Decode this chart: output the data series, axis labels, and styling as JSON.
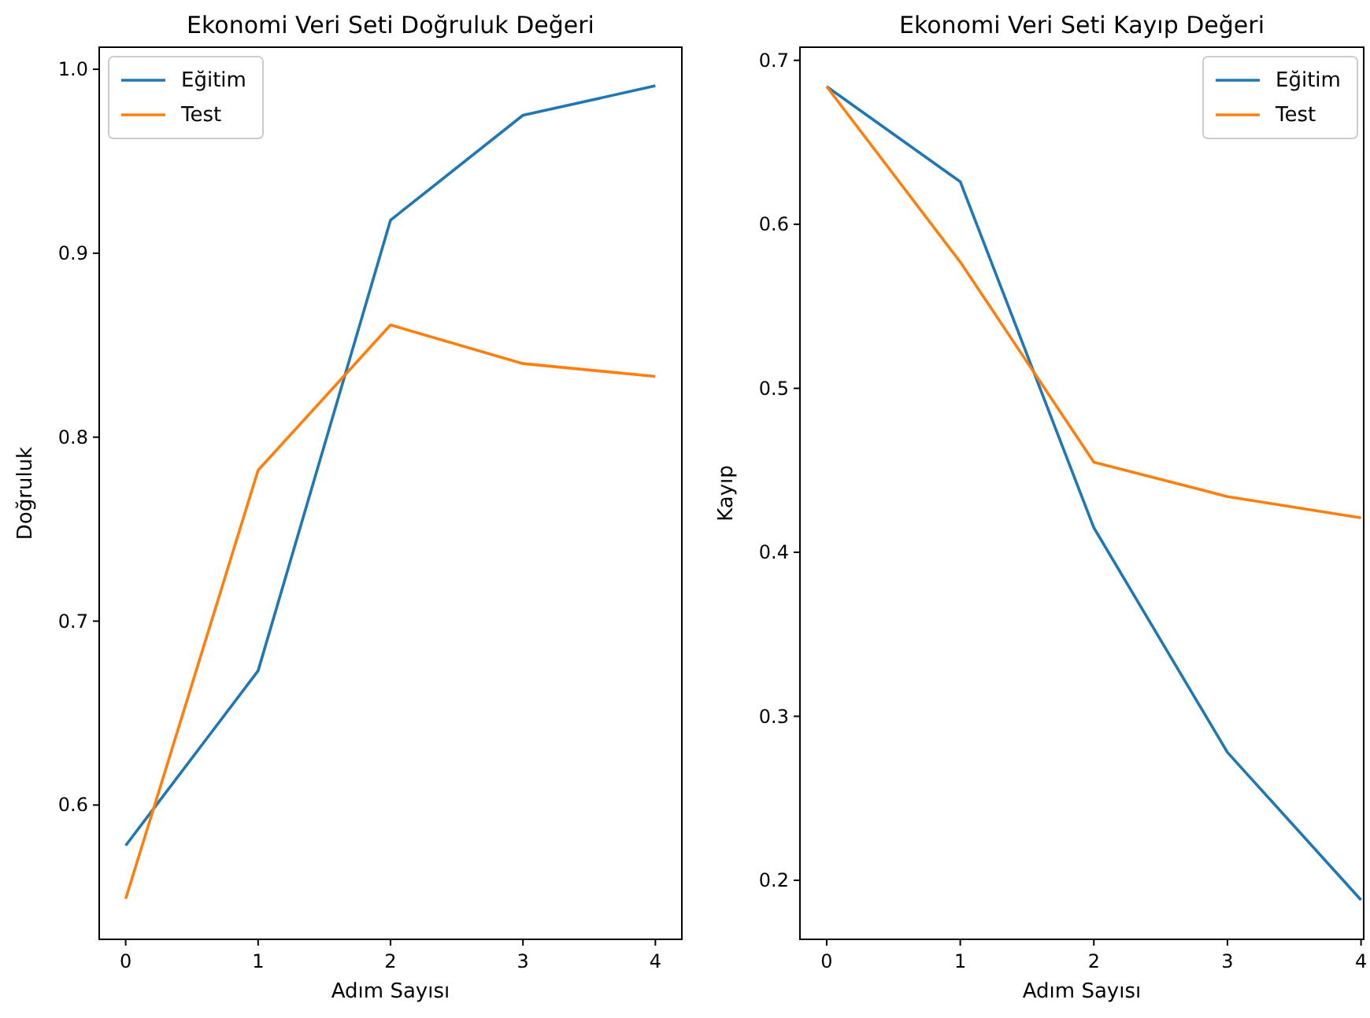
{
  "chart_data": [
    {
      "type": "line",
      "title": "Ekonomi Veri Seti Doğruluk Değeri",
      "xlabel": "Adım Sayısı",
      "ylabel": "Doğruluk",
      "x": [
        0,
        1,
        2,
        3,
        4
      ],
      "xlim": [
        -0.2,
        4.2
      ],
      "xticks": [
        0,
        1,
        2,
        3,
        4
      ],
      "ylim": [
        0.527,
        1.012
      ],
      "yticks": [
        0.6,
        0.7,
        0.8,
        0.9,
        {
          "value": 1.0,
          "label": "1.0"
        }
      ],
      "legend": "top left",
      "grid": false,
      "marker": "none",
      "series": [
        {
          "name": "Eğitim",
          "color": "#1f77b4",
          "values": [
            0.578,
            0.673,
            0.918,
            0.975,
            0.991
          ]
        },
        {
          "name": "Test",
          "color": "#ff7f0e",
          "values": [
            0.549,
            0.782,
            0.861,
            0.84,
            0.833
          ]
        }
      ]
    },
    {
      "type": "line",
      "title": "Ekonomi Veri Seti Kayıp Değeri",
      "xlabel": "Adım Sayısı",
      "ylabel": "Kayıp",
      "x": [
        0,
        1,
        2,
        3,
        4
      ],
      "xlim": [
        -0.2,
        4.02
      ],
      "xticks": [
        0,
        1,
        2,
        3,
        4
      ],
      "ylim": [
        0.164,
        0.708
      ],
      "yticks": [
        0.2,
        0.3,
        0.4,
        0.5,
        0.6,
        0.7
      ],
      "legend": "top right",
      "grid": false,
      "marker": "none",
      "series": [
        {
          "name": "Eğitim",
          "color": "#1f77b4",
          "values": [
            0.684,
            0.626,
            0.415,
            0.278,
            0.188
          ]
        },
        {
          "name": "Test",
          "color": "#ff7f0e",
          "values": [
            0.684,
            0.577,
            0.455,
            0.434,
            0.421
          ]
        }
      ]
    }
  ]
}
